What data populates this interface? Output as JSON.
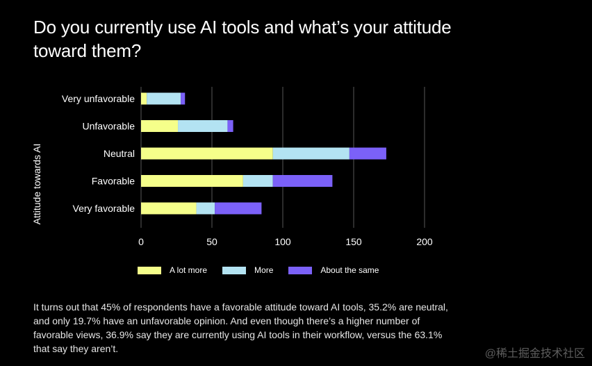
{
  "title": "Do you currently use AI tools and what’s your attitude toward them?",
  "caption": "It turns out that 45% of respondents have a favorable attitude toward AI tools, 35.2% are neutral, and only 19.7% have an unfavorable opinion. And even though there’s a higher number of favorable views, 36.9% say they are currently using AI tools in their workflow, versus the 63.1% that say they aren’t.",
  "watermark": "@稀土掘金技术社区",
  "chart_data": {
    "type": "bar",
    "orientation": "horizontal",
    "stacked": true,
    "ylabel": "Attitude towards AI",
    "xlabel": "",
    "categories": [
      "Very unfavorable",
      "Unfavorable",
      "Neutral",
      "Favorable",
      "Very favorable"
    ],
    "series": [
      {
        "name": "A lot more",
        "color": "#f5ff8a",
        "values": [
          4,
          26,
          93,
          72,
          39
        ]
      },
      {
        "name": "More",
        "color": "#b3e3f2",
        "values": [
          24,
          35,
          54,
          21,
          13
        ]
      },
      {
        "name": "About the same",
        "color": "#7b61f8",
        "values": [
          3,
          4,
          26,
          42,
          33
        ]
      }
    ],
    "xlim": [
      0,
      200
    ],
    "xticks": [
      0,
      50,
      100,
      150,
      200
    ],
    "grid": "vertical",
    "legend_position": "bottom",
    "background": "#000000",
    "grid_color": "#4a4a4a"
  }
}
